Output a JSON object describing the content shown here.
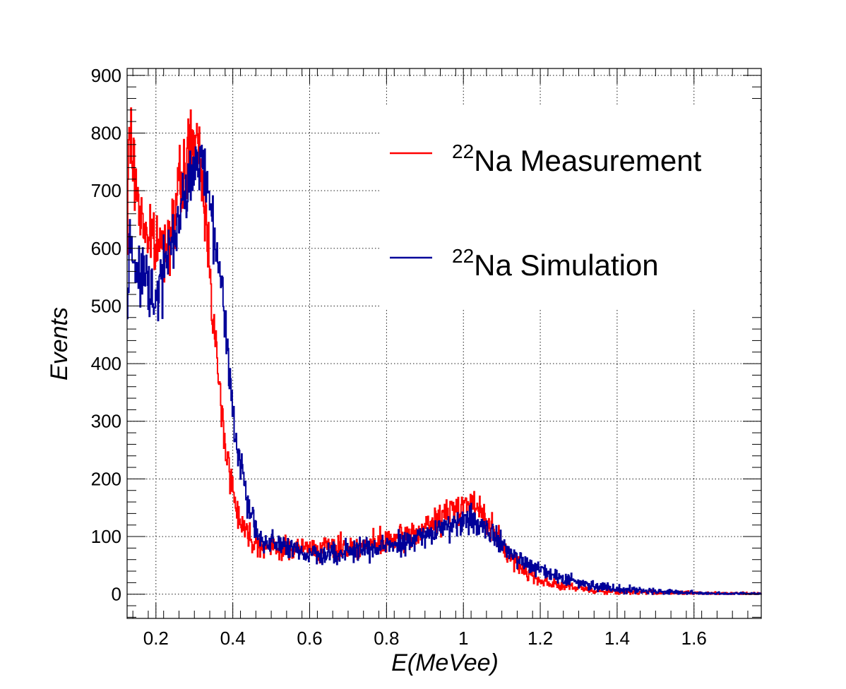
{
  "chart_data": {
    "type": "line",
    "title": "",
    "xlabel": "E(MeVee)",
    "ylabel": "Events",
    "xlim": [
      0.125,
      1.775
    ],
    "ylim": [
      -42,
      912
    ],
    "x_ticks": [
      0.2,
      0.4,
      0.6,
      0.8,
      1.0,
      1.2,
      1.4,
      1.6
    ],
    "x_tick_labels": [
      "0.2",
      "0.4",
      "0.6",
      "0.8",
      "1",
      "1.2",
      "1.4",
      "1.6"
    ],
    "y_ticks": [
      0,
      100,
      200,
      300,
      400,
      500,
      600,
      700,
      800,
      900
    ],
    "y_tick_labels": [
      "0",
      "100",
      "200",
      "300",
      "400",
      "500",
      "600",
      "700",
      "800",
      "900"
    ],
    "grid": true,
    "legend_position": "top-right",
    "series": [
      {
        "name_sup": "22",
        "name": "Na Measurement",
        "color": "#ff0000",
        "x": [
          0.125,
          0.13,
          0.14,
          0.15,
          0.16,
          0.17,
          0.18,
          0.19,
          0.2,
          0.21,
          0.22,
          0.23,
          0.24,
          0.25,
          0.26,
          0.27,
          0.28,
          0.29,
          0.3,
          0.31,
          0.32,
          0.33,
          0.34,
          0.35,
          0.36,
          0.37,
          0.38,
          0.39,
          0.4,
          0.41,
          0.42,
          0.43,
          0.44,
          0.45,
          0.46,
          0.47,
          0.48,
          0.5,
          0.52,
          0.55,
          0.6,
          0.65,
          0.7,
          0.75,
          0.8,
          0.85,
          0.9,
          0.95,
          0.98,
          1.0,
          1.02,
          1.05,
          1.08,
          1.1,
          1.12,
          1.15,
          1.2,
          1.25,
          1.3,
          1.35,
          1.4,
          1.5,
          1.6,
          1.7,
          1.775
        ],
        "y": [
          550,
          820,
          750,
          700,
          660,
          640,
          620,
          610,
          600,
          610,
          600,
          620,
          640,
          660,
          700,
          720,
          750,
          790,
          780,
          760,
          720,
          650,
          580,
          480,
          390,
          320,
          270,
          220,
          180,
          150,
          130,
          115,
          105,
          95,
          90,
          88,
          85,
          82,
          80,
          80,
          80,
          80,
          82,
          85,
          90,
          100,
          115,
          135,
          150,
          160,
          155,
          140,
          110,
          85,
          65,
          45,
          25,
          15,
          10,
          6,
          4,
          3,
          2,
          1,
          1
        ]
      },
      {
        "name_sup": "22",
        "name": "Na Simulation",
        "color": "#000099",
        "x": [
          0.125,
          0.13,
          0.14,
          0.15,
          0.16,
          0.17,
          0.18,
          0.19,
          0.2,
          0.21,
          0.22,
          0.23,
          0.24,
          0.25,
          0.26,
          0.27,
          0.28,
          0.29,
          0.3,
          0.31,
          0.32,
          0.33,
          0.34,
          0.35,
          0.36,
          0.37,
          0.38,
          0.39,
          0.4,
          0.41,
          0.42,
          0.43,
          0.44,
          0.45,
          0.46,
          0.47,
          0.48,
          0.5,
          0.52,
          0.55,
          0.6,
          0.65,
          0.7,
          0.75,
          0.8,
          0.85,
          0.9,
          0.95,
          0.98,
          1.0,
          1.02,
          1.05,
          1.08,
          1.1,
          1.12,
          1.15,
          1.18,
          1.2,
          1.25,
          1.3,
          1.35,
          1.4,
          1.45,
          1.5,
          1.6,
          1.7,
          1.775
        ],
        "y": [
          460,
          600,
          580,
          560,
          550,
          540,
          530,
          520,
          510,
          530,
          560,
          580,
          600,
          620,
          650,
          680,
          700,
          730,
          740,
          750,
          740,
          720,
          680,
          650,
          600,
          550,
          480,
          400,
          320,
          260,
          230,
          200,
          160,
          130,
          110,
          100,
          95,
          88,
          82,
          75,
          70,
          72,
          75,
          78,
          82,
          90,
          100,
          115,
          125,
          130,
          128,
          120,
          105,
          90,
          70,
          60,
          50,
          42,
          30,
          20,
          14,
          10,
          7,
          5,
          2,
          1,
          1
        ]
      }
    ]
  }
}
